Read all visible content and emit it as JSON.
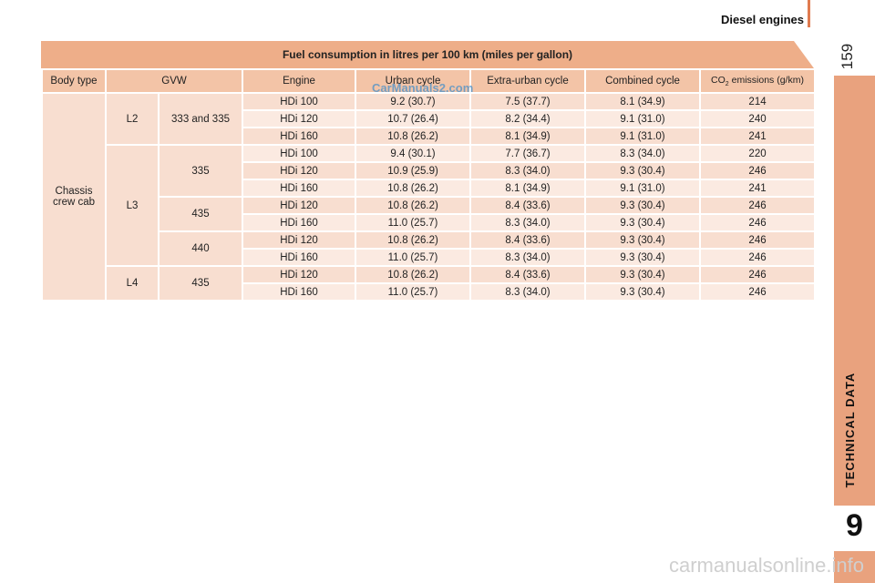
{
  "header": {
    "section": "Diesel engines",
    "page": "159"
  },
  "sidebar": {
    "label": "TECHNICAL DATA",
    "chapter": "9"
  },
  "table": {
    "caption": "Fuel consumption in litres per 100 km (miles per gallon)",
    "headers": [
      "Body type",
      "GVW",
      "Engine",
      "Urban cycle",
      "Extra-urban cycle",
      "Combined cycle"
    ],
    "co2_header": {
      "prefix": "CO",
      "sub": "2",
      "suffix": " emissions (g/km)"
    },
    "body_type": "Chassis crew cab",
    "groups": [
      {
        "length": "L2",
        "gvw": [
          {
            "value": "333 and 335",
            "rows": [
              [
                "HDi 100",
                "9.2 (30.7)",
                "7.5 (37.7)",
                "8.1 (34.9)",
                "214"
              ],
              [
                "HDi 120",
                "10.7 (26.4)",
                "8.2 (34.4)",
                "9.1 (31.0)",
                "240"
              ],
              [
                "HDi 160",
                "10.8 (26.2)",
                "8.1 (34.9)",
                "9.1 (31.0)",
                "241"
              ]
            ]
          }
        ]
      },
      {
        "length": "L3",
        "gvw": [
          {
            "value": "335",
            "rows": [
              [
                "HDi 100",
                "9.4 (30.1)",
                "7.7 (36.7)",
                "8.3 (34.0)",
                "220"
              ],
              [
                "HDi 120",
                "10.9 (25.9)",
                "8.3 (34.0)",
                "9.3 (30.4)",
                "246"
              ],
              [
                "HDi 160",
                "10.8 (26.2)",
                "8.1 (34.9)",
                "9.1 (31.0)",
                "241"
              ]
            ]
          },
          {
            "value": "435",
            "rows": [
              [
                "HDi 120",
                "10.8 (26.2)",
                "8.4 (33.6)",
                "9.3 (30.4)",
                "246"
              ],
              [
                "HDi 160",
                "11.0 (25.7)",
                "8.3 (34.0)",
                "9.3 (30.4)",
                "246"
              ]
            ]
          },
          {
            "value": "440",
            "rows": [
              [
                "HDi 120",
                "10.8 (26.2)",
                "8.4 (33.6)",
                "9.3 (30.4)",
                "246"
              ],
              [
                "HDi 160",
                "11.0 (25.7)",
                "8.3 (34.0)",
                "9.3 (30.4)",
                "246"
              ]
            ]
          }
        ]
      },
      {
        "length": "L4",
        "gvw": [
          {
            "value": "435",
            "rows": [
              [
                "HDi 120",
                "10.8 (26.2)",
                "8.4 (33.6)",
                "9.3 (30.4)",
                "246"
              ],
              [
                "HDi 160",
                "11.0 (25.7)",
                "8.3 (34.0)",
                "9.3 (30.4)",
                "246"
              ]
            ]
          }
        ]
      }
    ]
  },
  "watermark": "CarManuals2.com",
  "footer_watermark": "carmanualsonline.info"
}
